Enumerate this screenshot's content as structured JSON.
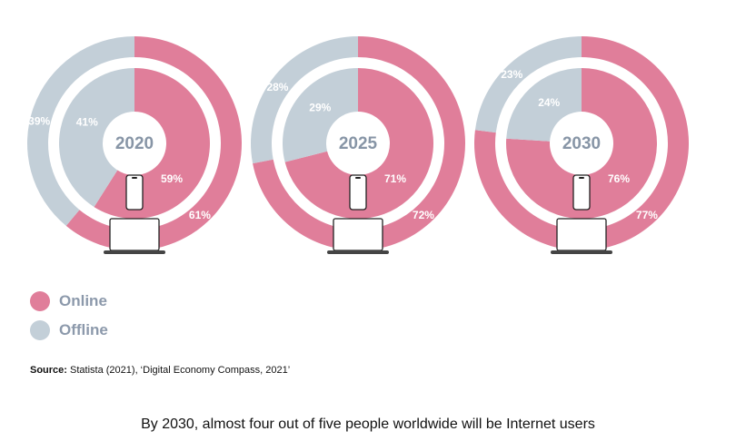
{
  "chart_data": {
    "type": "pie",
    "subtype": "nested-donut",
    "series_names": [
      "Online",
      "Offline"
    ],
    "colors": {
      "online": "#e07e9a",
      "offline": "#c3cfd8",
      "year_text": "#8795a6",
      "legend_text": "#8c99ab"
    },
    "charts": [
      {
        "year": "2020",
        "outer": {
          "online": 61,
          "offline": 39
        },
        "inner": {
          "online": 59,
          "offline": 41
        },
        "labels": {
          "outer_online": "61%",
          "outer_offline": "39%",
          "inner_online": "59%",
          "inner_offline": "41%"
        }
      },
      {
        "year": "2025",
        "outer": {
          "online": 72,
          "offline": 28
        },
        "inner": {
          "online": 71,
          "offline": 29
        },
        "labels": {
          "outer_online": "72%",
          "outer_offline": "28%",
          "inner_online": "71%",
          "inner_offline": "29%"
        }
      },
      {
        "year": "2030",
        "outer": {
          "online": 77,
          "offline": 23
        },
        "inner": {
          "online": 76,
          "offline": 24
        },
        "labels": {
          "outer_online": "77%",
          "outer_offline": "23%",
          "inner_online": "76%",
          "inner_offline": "24%"
        }
      }
    ],
    "icons": [
      "smartphone-icon",
      "laptop-icon"
    ]
  },
  "legend": {
    "online": "Online",
    "offline": "Offline"
  },
  "source": {
    "prefix": "Source:",
    "text": " Statista (2021), ‘Digital Economy Compass, 2021’"
  },
  "caption": "By 2030, almost four out of five people worldwide will be Internet users"
}
